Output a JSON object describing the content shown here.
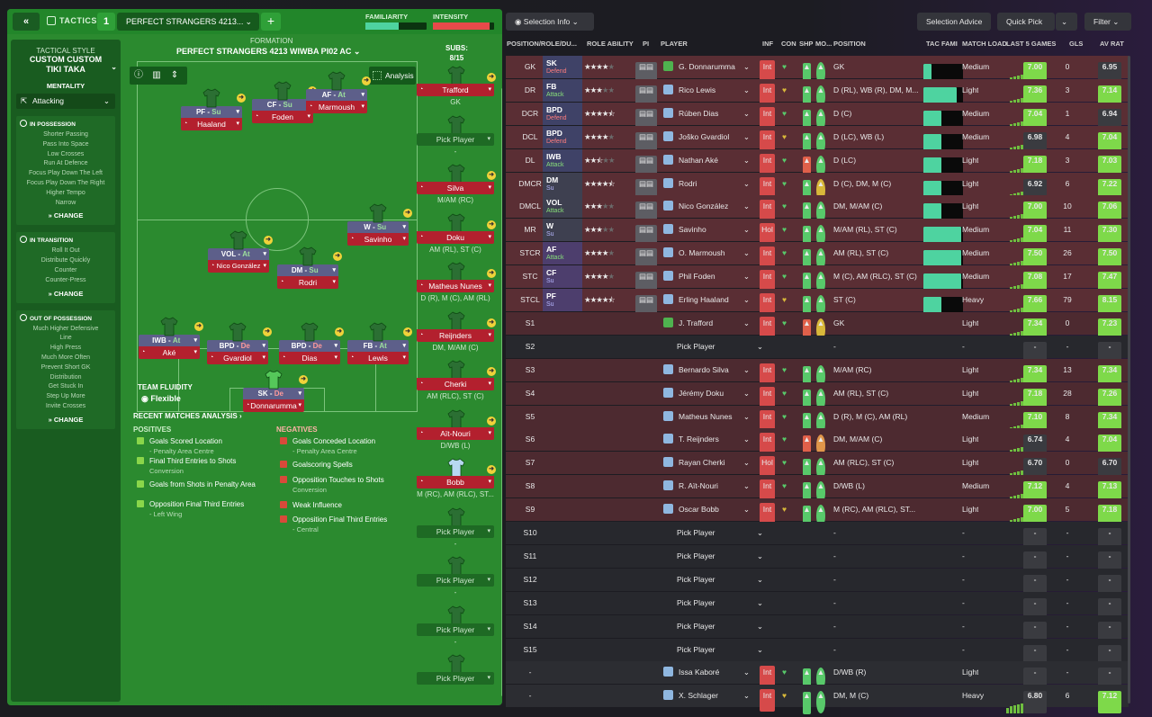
{
  "topbar": {
    "back": "«",
    "tactics": "TACTICS",
    "slot": "1",
    "tactic_name": "PERFECT STRANGERS 4213...",
    "add": "+",
    "familiarity": "FAMILIARITY",
    "intensity": "INTENSITY",
    "familiarity_level": 0.55,
    "intensity_level": 0.92
  },
  "sidebar": {
    "style_label": "TACTICAL STYLE",
    "style_name1": "CUSTOM CUSTOM",
    "style_name2": "TIKI TAKA",
    "mentality_label": "MENTALITY",
    "mentality": "Attacking",
    "in_poss_title": "IN POSSESSION",
    "in_poss": [
      "Shorter Passing",
      "Pass Into Space",
      "Low Crosses",
      "Run At Defence",
      "Focus Play Down The Left",
      "Focus Play Down The Right",
      "Higher Tempo",
      "Narrow"
    ],
    "trans_title": "IN TRANSITION",
    "trans": [
      "Roll It Out",
      "Distribute Quickly",
      "Counter",
      "Counter-Press"
    ],
    "oop_title": "OUT OF POSSESSION",
    "oop": [
      "Much Higher Defensive",
      "Line",
      "High Press",
      "Much More Often",
      "Prevent Short GK",
      "Distribution",
      "Get Stuck In",
      "Step Up More",
      "Invite Crosses"
    ],
    "change": "CHANGE"
  },
  "pitch": {
    "formation_label": "FORMATION",
    "formation": "PERFECT STRANGERS 4213 WIWBA PI02 AC",
    "analysis": "Analysis",
    "fluidity_label": "TEAM FLUIDITY",
    "fluidity": "Flexible",
    "players": [
      {
        "role": "PF",
        "duty": "Su",
        "name": "Haaland"
      },
      {
        "role": "CF",
        "duty": "Su",
        "name": "Foden"
      },
      {
        "role": "AF",
        "duty": "At",
        "name": "Marmoush"
      },
      {
        "role": "W",
        "duty": "Su",
        "name": "Savinho"
      },
      {
        "role": "VOL",
        "duty": "At",
        "name": "Nico González"
      },
      {
        "role": "DM",
        "duty": "Su",
        "name": "Rodri"
      },
      {
        "role": "IWB",
        "duty": "At",
        "name": "Aké"
      },
      {
        "role": "BPD",
        "duty": "De",
        "name": "Gvardiol"
      },
      {
        "role": "BPD",
        "duty": "De",
        "name": "Dias"
      },
      {
        "role": "FB",
        "duty": "At",
        "name": "Lewis"
      },
      {
        "role": "SK",
        "duty": "De",
        "name": "Donnarumma"
      }
    ]
  },
  "analysis": {
    "title": "RECENT MATCHES ANALYSIS ›",
    "pos_title": "POSITIVES",
    "neg_title": "NEGATIVES",
    "positives": [
      {
        "t": "Goals Scored Location",
        "s": "- Penalty Area Centre"
      },
      {
        "t": "Final Third Entries to Shots",
        "s": "Conversion"
      },
      {
        "t": "Goals from Shots in Penalty Area",
        "s": ""
      },
      {
        "t": "Opposition Final Third Entries",
        "s": "- Left Wing"
      }
    ],
    "negatives": [
      {
        "t": "Goals Conceded Location",
        "s": "- Penalty Area Centre"
      },
      {
        "t": "Goalscoring Spells",
        "s": ""
      },
      {
        "t": "Opposition Touches to Shots",
        "s": "Conversion"
      },
      {
        "t": "Weak Influence",
        "s": ""
      },
      {
        "t": "Opposition Final Third Entries",
        "s": "- Central"
      }
    ]
  },
  "subs": {
    "title": "SUBS:",
    "count": "8/15",
    "pick": "Pick Player",
    "list": [
      {
        "name": "Trafford",
        "pos": "GK"
      },
      {
        "name": "",
        "pos": "-"
      },
      {
        "name": "Silva",
        "pos": "M/AM (RC)"
      },
      {
        "name": "Doku",
        "pos": "AM (RL), ST (C)"
      },
      {
        "name": "Matheus Nunes",
        "pos": "D (R), M (C), AM (RL)"
      },
      {
        "name": "Reijnders",
        "pos": "DM, M/AM (C)"
      },
      {
        "name": "Cherki",
        "pos": "AM (RLC), ST (C)"
      },
      {
        "name": "Aït-Nouri",
        "pos": "D/WB (L)"
      },
      {
        "name": "Bobb",
        "pos": "M (RC), AM (RLC), ST..."
      },
      {
        "name": "",
        "pos": "-"
      },
      {
        "name": "",
        "pos": "-"
      },
      {
        "name": "",
        "pos": "-"
      },
      {
        "name": "",
        "pos": ""
      }
    ]
  },
  "selection": {
    "info": "Selection Info",
    "advice": "Selection Advice",
    "quick": "Quick Pick",
    "filter": "Filter",
    "headers": [
      "POSITION/ROLE/DU...",
      "ROLE ABILITY",
      "PI",
      "PLAYER",
      "INF",
      "CON",
      "SHP",
      "MO...",
      "POSITION",
      "TAC FAMI",
      "MATCH LOAD",
      "LAST 5 GAMES",
      "GLS",
      "AV RAT"
    ],
    "rows": [
      {
        "p": "GK",
        "r": "SK",
        "d": "Defend",
        "dc": "defc",
        "rc": "def",
        "st": 4,
        "pl": "G. Donnarumma",
        "inf": "Int",
        "con": "g",
        "shp": "g",
        "mor": "g",
        "pos": "GK",
        "fam": 0.2,
        "load": "Medium",
        "rt": "7.00",
        "rg": "g",
        "gls": "0",
        "av": "6.95",
        "ag": "n",
        "bg": "st"
      },
      {
        "p": "DR",
        "r": "FB",
        "d": "Attack",
        "dc": "attc",
        "rc": "def",
        "st": 3,
        "pl": "Rico Lewis",
        "inf": "Int",
        "con": "y",
        "shp": "g",
        "mor": "g",
        "pos": "D (RL), WB (R), DM, M...",
        "fam": 0.85,
        "load": "Light",
        "rt": "7.36",
        "rg": "g",
        "gls": "3",
        "av": "7.14",
        "ag": "g",
        "bg": "st"
      },
      {
        "p": "DCR",
        "r": "BPD",
        "d": "Defend",
        "dc": "defc",
        "rc": "def",
        "st": 4.5,
        "pl": "Rúben Dias",
        "inf": "Int",
        "con": "g",
        "shp": "g",
        "mor": "g",
        "pos": "D (C)",
        "fam": 0.45,
        "load": "Medium",
        "rt": "7.04",
        "rg": "g",
        "gls": "1",
        "av": "6.94",
        "ag": "n",
        "bg": "st"
      },
      {
        "p": "DCL",
        "r": "BPD",
        "d": "Defend",
        "dc": "defc",
        "rc": "def",
        "st": 4,
        "pl": "Joško Gvardiol",
        "inf": "Int",
        "con": "y",
        "shp": "g",
        "mor": "g",
        "pos": "D (LC), WB (L)",
        "fam": 0.45,
        "load": "Medium",
        "rt": "6.98",
        "rg": "n",
        "gls": "4",
        "av": "7.04",
        "ag": "g",
        "bg": "st"
      },
      {
        "p": "DL",
        "r": "IWB",
        "d": "Attack",
        "dc": "attc",
        "rc": "def",
        "st": 2.5,
        "pl": "Nathan Aké",
        "inf": "Int",
        "con": "g",
        "shp": "r",
        "mor": "g",
        "pos": "D (LC)",
        "fam": 0.45,
        "load": "Light",
        "rt": "7.18",
        "rg": "g",
        "gls": "3",
        "av": "7.03",
        "ag": "g",
        "bg": "st"
      },
      {
        "p": "DMCR",
        "r": "DM",
        "d": "Su",
        "dc": "suc",
        "rc": "gen",
        "st": 4.5,
        "pl": "Rodri",
        "inf": "Int",
        "con": "g",
        "shp": "g",
        "mor": "y",
        "pos": "D (C), DM, M (C)",
        "fam": 0.45,
        "load": "Light",
        "rt": "6.92",
        "rg": "n",
        "gls": "6",
        "av": "7.22",
        "ag": "g",
        "bg": "st"
      },
      {
        "p": "DMCL",
        "r": "VOL",
        "d": "Attack",
        "dc": "attc",
        "rc": "gen",
        "st": 3,
        "pl": "Nico González",
        "inf": "Int",
        "con": "g",
        "shp": "g",
        "mor": "g",
        "pos": "DM, M/AM (C)",
        "fam": 0.45,
        "load": "Light",
        "rt": "7.00",
        "rg": "g",
        "gls": "10",
        "av": "7.06",
        "ag": "g",
        "bg": "st"
      },
      {
        "p": "MR",
        "r": "W",
        "d": "Su",
        "dc": "suc",
        "rc": "gen",
        "st": 3,
        "pl": "Savinho",
        "inf": "Hol",
        "con": "g",
        "shp": "g",
        "mor": "g",
        "pos": "M/AM (RL), ST (C)",
        "fam": 0.95,
        "load": "Medium",
        "rt": "7.04",
        "rg": "g",
        "gls": "11",
        "av": "7.30",
        "ag": "g",
        "bg": "st"
      },
      {
        "p": "STCR",
        "r": "AF",
        "d": "Attack",
        "dc": "attc",
        "rc": "att",
        "st": 4,
        "pl": "O. Marmoush",
        "inf": "Int",
        "con": "g",
        "shp": "g",
        "mor": "g",
        "pos": "AM (RL), ST (C)",
        "fam": 0.95,
        "load": "Medium",
        "rt": "7.50",
        "rg": "g",
        "gls": "26",
        "av": "7.50",
        "ag": "g",
        "bg": "st"
      },
      {
        "p": "STC",
        "r": "CF",
        "d": "Su",
        "dc": "suc",
        "rc": "att",
        "st": 4,
        "pl": "Phil Foden",
        "inf": "Int",
        "con": "g",
        "shp": "g",
        "mor": "g",
        "pos": "M (C), AM (RLC), ST (C)",
        "fam": 0.95,
        "load": "Medium",
        "rt": "7.08",
        "rg": "g",
        "gls": "17",
        "av": "7.47",
        "ag": "g",
        "bg": "st"
      },
      {
        "p": "STCL",
        "r": "PF",
        "d": "Su",
        "dc": "suc",
        "rc": "att",
        "st": 4.5,
        "pl": "Erling Haaland",
        "inf": "Int",
        "con": "y",
        "shp": "g",
        "mor": "g",
        "pos": "ST (C)",
        "fam": 0.45,
        "load": "Heavy",
        "rt": "7.66",
        "rg": "g",
        "gls": "79",
        "av": "8.15",
        "ag": "g",
        "bg": "st"
      },
      {
        "p": "S1",
        "pl": "J. Trafford",
        "inf": "Int",
        "con": "g",
        "shp": "r",
        "mor": "y",
        "pos": "GK",
        "load": "Light",
        "rt": "7.34",
        "rg": "g",
        "gls": "0",
        "av": "7.23",
        "ag": "g",
        "bg": "sb"
      },
      {
        "p": "S2",
        "pick": "Pick Player",
        "pos": "-",
        "load": "-",
        "gls": "-",
        "av": "-",
        "bg": "em"
      },
      {
        "p": "S3",
        "pl": "Bernardo Silva",
        "inf": "Int",
        "con": "g",
        "shp": "g",
        "mor": "g",
        "pos": "M/AM (RC)",
        "load": "Light",
        "rt": "7.34",
        "rg": "g",
        "gls": "13",
        "av": "7.34",
        "ag": "g",
        "bg": "sb"
      },
      {
        "p": "S4",
        "pl": "Jérémy Doku",
        "inf": "Int",
        "con": "g",
        "shp": "g",
        "mor": "g",
        "pos": "AM (RL), ST (C)",
        "load": "Light",
        "rt": "7.18",
        "rg": "g",
        "gls": "28",
        "av": "7.26",
        "ag": "g",
        "bg": "sb"
      },
      {
        "p": "S5",
        "pl": "Matheus Nunes",
        "inf": "Int",
        "con": "g",
        "shp": "g",
        "mor": "g",
        "pos": "D (R), M (C), AM (RL)",
        "load": "Medium",
        "rt": "7.10",
        "rg": "g",
        "gls": "8",
        "av": "7.34",
        "ag": "g",
        "bg": "sb"
      },
      {
        "p": "S6",
        "pl": "T. Reijnders",
        "inf": "Int",
        "con": "g",
        "shp": "r",
        "mor": "o",
        "pos": "DM, M/AM (C)",
        "load": "Light",
        "rt": "6.74",
        "rg": "n",
        "gls": "4",
        "av": "7.04",
        "ag": "g",
        "bg": "sb"
      },
      {
        "p": "S7",
        "pl": "Rayan Cherki",
        "inf": "Hol",
        "con": "g",
        "shp": "g",
        "mor": "g",
        "pos": "AM (RLC), ST (C)",
        "load": "Light",
        "rt": "6.70",
        "rg": "n",
        "gls": "0",
        "av": "6.70",
        "ag": "n",
        "bg": "sb"
      },
      {
        "p": "S8",
        "pl": "R. Aït-Nouri",
        "inf": "Int",
        "con": "g",
        "shp": "g",
        "mor": "g",
        "pos": "D/WB (L)",
        "load": "Medium",
        "rt": "7.12",
        "rg": "g",
        "gls": "4",
        "av": "7.13",
        "ag": "g",
        "bg": "sb"
      },
      {
        "p": "S9",
        "pl": "Oscar Bobb",
        "inf": "Int",
        "con": "y",
        "shp": "g",
        "mor": "g",
        "pos": "M (RC), AM (RLC), ST...",
        "load": "Light",
        "rt": "7.00",
        "rg": "g",
        "gls": "5",
        "av": "7.18",
        "ag": "g",
        "bg": "sb"
      },
      {
        "p": "S10",
        "pick": "Pick Player",
        "pos": "-",
        "load": "-",
        "gls": "-",
        "av": "-",
        "bg": "em"
      },
      {
        "p": "S11",
        "pick": "Pick Player",
        "pos": "-",
        "load": "-",
        "gls": "-",
        "av": "-",
        "bg": "em"
      },
      {
        "p": "S12",
        "pick": "Pick Player",
        "pos": "-",
        "load": "-",
        "gls": "-",
        "av": "-",
        "bg": "em"
      },
      {
        "p": "S13",
        "pick": "Pick Player",
        "pos": "-",
        "load": "-",
        "gls": "-",
        "av": "-",
        "bg": "em"
      },
      {
        "p": "S14",
        "pick": "Pick Player",
        "pos": "-",
        "load": "-",
        "gls": "-",
        "av": "-",
        "bg": "em"
      },
      {
        "p": "S15",
        "pick": "Pick Player",
        "pos": "-",
        "load": "-",
        "gls": "-",
        "av": "-",
        "bg": "em"
      },
      {
        "p": "-",
        "pl": "Issa Kaboré",
        "inf": "Int",
        "con": "g",
        "shp": "g",
        "mor": "g",
        "pos": "D/WB (R)",
        "load": "Light",
        "gls": "-",
        "av": "-",
        "bg": "res"
      },
      {
        "p": "-",
        "pl": "X. Schlager",
        "inf": "Int",
        "con": "y",
        "shp": "g",
        "mor": "g",
        "pos": "DM, M (C)",
        "load": "Heavy",
        "rt": "6.80",
        "rg": "n",
        "gls": "6",
        "av": "7.12",
        "ag": "g",
        "bg": "res"
      }
    ]
  }
}
